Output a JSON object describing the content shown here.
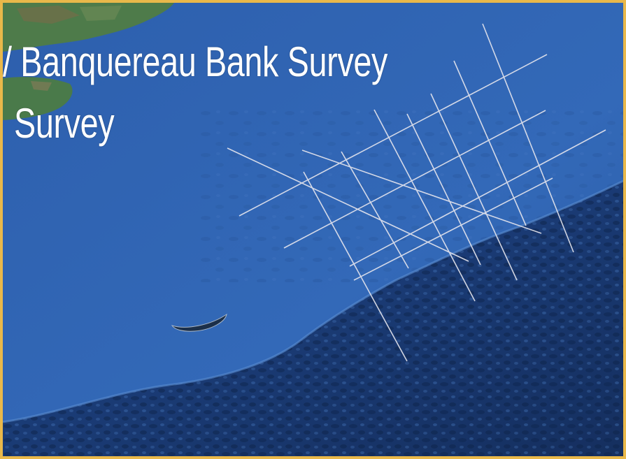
{
  "map": {
    "title_line1": "/ Banquereau Bank Survey",
    "title_line2": "Survey",
    "colors": {
      "ocean_shelf": "#2f63b1",
      "ocean_deep": "#18386e",
      "land_green": "#4a7a4a",
      "survey_lines": "#e6e6ee",
      "frame": "#e9b84a"
    },
    "features": [
      "land-mass",
      "island",
      "continental-shelf",
      "shelf-break",
      "deep-ocean",
      "survey-grid"
    ]
  }
}
